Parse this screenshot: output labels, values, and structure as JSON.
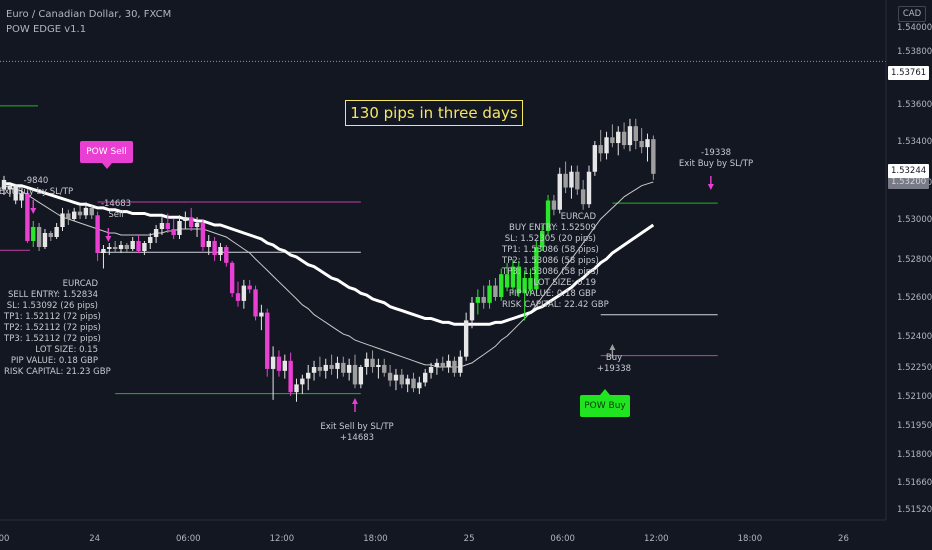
{
  "header": {
    "symbol_line": "Euro / Canadian Dollar, 30, FXCM",
    "indicator_line": "POW EDGE v1.1",
    "currency": "CAD"
  },
  "banner": "130 pips in three days",
  "tags": {
    "sell": "POW Sell",
    "buy": "POW Buy"
  },
  "sell_info": {
    "lines": [
      "EURCAD",
      "SELL ENTRY: 1.52834",
      "SL: 1.53092 (26 pips)",
      "TP1: 1.52112 (72 pips)",
      "TP2: 1.52112 (72 pips)",
      "TP3: 1.52112 (72 pips)",
      "LOT SIZE: 0.15",
      "PIP VALUE: 0.18 GBP",
      "RISK CAPITAL: 21.23 GBP"
    ]
  },
  "buy_info": {
    "lines": [
      "EURCAD",
      "BUY ENTRY: 1.52509",
      "SL: 1.52305 (20 pips)",
      "TP1: 1.53086 (58 pips)",
      "TP2: 1.53086 (58 pips)",
      "TP3: 1.53086 (58 pips)",
      "LOT SIZE: 0.19",
      "PIP VALUE: 0.18 GBP",
      "RISK CAPITAL: 22.42 GBP"
    ]
  },
  "annotations": {
    "sell_pnl": "-14683",
    "sell_label": "Sell",
    "exit_sell": "Exit Sell by SL/TP",
    "exit_sell_pnl": "+14683",
    "buy_label": "Buy",
    "buy_pnl": "+19338",
    "exit_buy_pnl": "-19338",
    "exit_buy": "Exit Buy by SL/TP",
    "left_exit_pnl": "-9840",
    "left_exit": "Exit Buy by SL/TP"
  },
  "price_labels": {
    "dotted_line": "1.53761",
    "last_price": "1.53244",
    "last_time_partial": "1.53200"
  },
  "colors": {
    "background": "#131722",
    "bull_signal": "#2ce62c",
    "bear_signal": "#ea3fd3",
    "bull_normal": "#e6e6e6",
    "bear_normal": "#9e9e9e",
    "banner": "#f5e663",
    "sl_line": "#c23fa6",
    "tp_line": "#22b322"
  },
  "chart_data": {
    "type": "candlestick",
    "symbol": "EURCAD",
    "timeframe": "30",
    "y_ticks": [
      1.54,
      1.538,
      1.536,
      1.534,
      1.532,
      1.53,
      1.528,
      1.526,
      1.524,
      1.5225,
      1.521,
      1.5195,
      1.518,
      1.5166,
      1.5152
    ],
    "y_tick_labels": [
      "1.54000",
      "1.53800",
      "1.53600",
      "1.53400",
      "1.53200",
      "1.53000",
      "1.52800",
      "1.52600",
      "1.52400",
      "1.52250",
      "1.52100",
      "1.51950",
      "1.51800",
      "1.51660",
      "1.51520"
    ],
    "x_ticks": [
      "00",
      "24",
      "06:00",
      "12:00",
      "18:00",
      "25",
      "06:00",
      "12:00",
      "18:00",
      "26"
    ],
    "x_tick_index": [
      0,
      15.5,
      31.5,
      47.5,
      63.5,
      79.5,
      95.5,
      111.5,
      127.5,
      143.5
    ],
    "candles": [
      [
        1.5321,
        1.5323,
        1.5313,
        1.5316,
        "bull"
      ],
      [
        1.5316,
        1.5319,
        1.5312,
        1.5318,
        "bull"
      ],
      [
        1.5318,
        1.5319,
        1.5308,
        1.531,
        "bull"
      ],
      [
        1.531,
        1.5316,
        1.5306,
        1.5314,
        "bull"
      ],
      [
        1.5314,
        1.5315,
        1.5288,
        1.5289,
        "bear_sig"
      ],
      [
        1.5289,
        1.5299,
        1.5286,
        1.5296,
        "bull_sig"
      ],
      [
        1.5296,
        1.5298,
        1.5284,
        1.5286,
        "bear"
      ],
      [
        1.5286,
        1.5295,
        1.5285,
        1.5293,
        "bull"
      ],
      [
        1.5293,
        1.5294,
        1.5289,
        1.5291,
        "bear"
      ],
      [
        1.5291,
        1.5298,
        1.529,
        1.5296,
        "bull"
      ],
      [
        1.5296,
        1.5306,
        1.5294,
        1.5303,
        "bull"
      ],
      [
        1.5303,
        1.5305,
        1.5297,
        1.53,
        "bear"
      ],
      [
        1.53,
        1.5306,
        1.5299,
        1.5304,
        "bull"
      ],
      [
        1.5304,
        1.5307,
        1.53,
        1.5302,
        "bear"
      ],
      [
        1.5302,
        1.5309,
        1.53,
        1.5306,
        "bull"
      ],
      [
        1.5306,
        1.5307,
        1.53,
        1.5302,
        "bear"
      ],
      [
        1.5302,
        1.5304,
        1.5279,
        1.5283,
        "bear_sig"
      ],
      [
        1.5283,
        1.5287,
        1.5275,
        1.5285,
        "bull"
      ],
      [
        1.5285,
        1.5288,
        1.5282,
        1.5286,
        "bull"
      ],
      [
        1.5286,
        1.5289,
        1.5283,
        1.5285,
        "bear"
      ],
      [
        1.5285,
        1.5289,
        1.5283,
        1.5287,
        "bull"
      ],
      [
        1.5287,
        1.5288,
        1.5283,
        1.5285,
        "bear"
      ],
      [
        1.5285,
        1.5291,
        1.5284,
        1.5289,
        "bull"
      ],
      [
        1.5289,
        1.5292,
        1.5283,
        1.5284,
        "bear_sig"
      ],
      [
        1.5284,
        1.5289,
        1.5282,
        1.5288,
        "bull"
      ],
      [
        1.5288,
        1.5293,
        1.5285,
        1.5291,
        "bull"
      ],
      [
        1.5291,
        1.5297,
        1.5288,
        1.5295,
        "bull"
      ],
      [
        1.5295,
        1.5301,
        1.5292,
        1.5298,
        "bull"
      ],
      [
        1.5298,
        1.5303,
        1.5293,
        1.5295,
        "bear_sig"
      ],
      [
        1.5295,
        1.53,
        1.529,
        1.5292,
        "bear_sig"
      ],
      [
        1.5292,
        1.5302,
        1.529,
        1.5299,
        "bull"
      ],
      [
        1.5299,
        1.5304,
        1.5295,
        1.5301,
        "bull"
      ],
      [
        1.5301,
        1.5306,
        1.5294,
        1.5296,
        "bear_sig"
      ],
      [
        1.5296,
        1.5301,
        1.5291,
        1.5298,
        "bull"
      ],
      [
        1.5298,
        1.53,
        1.5284,
        1.5286,
        "bear_sig"
      ],
      [
        1.5286,
        1.5292,
        1.5282,
        1.5289,
        "bull"
      ],
      [
        1.5289,
        1.5291,
        1.5279,
        1.5282,
        "bear_sig"
      ],
      [
        1.5282,
        1.5288,
        1.5279,
        1.5286,
        "bull"
      ],
      [
        1.5286,
        1.5287,
        1.5276,
        1.5278,
        "bear_sig"
      ],
      [
        1.5278,
        1.5279,
        1.526,
        1.5262,
        "bear_sig"
      ],
      [
        1.5262,
        1.5268,
        1.5255,
        1.5258,
        "bear_sig"
      ],
      [
        1.5258,
        1.5269,
        1.5254,
        1.5266,
        "bull"
      ],
      [
        1.5266,
        1.5269,
        1.5262,
        1.5264,
        "bear_sig"
      ],
      [
        1.5264,
        1.5266,
        1.5248,
        1.525,
        "bear_sig"
      ],
      [
        1.525,
        1.5256,
        1.5243,
        1.5252,
        "bull"
      ],
      [
        1.5252,
        1.5254,
        1.522,
        1.5224,
        "bear_sig"
      ],
      [
        1.5224,
        1.5235,
        1.5208,
        1.523,
        "bull"
      ],
      [
        1.523,
        1.5233,
        1.522,
        1.5223,
        "bear_sig"
      ],
      [
        1.5223,
        1.5231,
        1.5219,
        1.5228,
        "bull"
      ],
      [
        1.5228,
        1.5232,
        1.521,
        1.5212,
        "bear_sig"
      ],
      [
        1.5212,
        1.5219,
        1.5207,
        1.5216,
        "bull"
      ],
      [
        1.5216,
        1.5221,
        1.5211,
        1.5219,
        "bull"
      ],
      [
        1.5219,
        1.5226,
        1.5213,
        1.5222,
        "bull"
      ],
      [
        1.5222,
        1.5228,
        1.5218,
        1.5225,
        "bull"
      ],
      [
        1.5225,
        1.523,
        1.522,
        1.5223,
        "bear"
      ],
      [
        1.5223,
        1.5229,
        1.5219,
        1.5226,
        "bull"
      ],
      [
        1.5226,
        1.5231,
        1.5221,
        1.5224,
        "bear"
      ],
      [
        1.5224,
        1.523,
        1.5219,
        1.5227,
        "bull"
      ],
      [
        1.5227,
        1.523,
        1.522,
        1.5222,
        "bear"
      ],
      [
        1.5222,
        1.5229,
        1.5218,
        1.5226,
        "bull"
      ],
      [
        1.5226,
        1.5231,
        1.5214,
        1.5216,
        "bear"
      ],
      [
        1.5216,
        1.5226,
        1.5214,
        1.5225,
        "bull"
      ],
      [
        1.5225,
        1.5232,
        1.5221,
        1.5229,
        "bull"
      ],
      [
        1.5229,
        1.5233,
        1.5222,
        1.5225,
        "bear"
      ],
      [
        1.5225,
        1.5229,
        1.5219,
        1.5226,
        "bull"
      ],
      [
        1.5226,
        1.5229,
        1.522,
        1.5222,
        "bear"
      ],
      [
        1.5222,
        1.5226,
        1.5215,
        1.5218,
        "bear"
      ],
      [
        1.5218,
        1.5224,
        1.5213,
        1.5221,
        "bull"
      ],
      [
        1.5221,
        1.5224,
        1.5214,
        1.5216,
        "bear"
      ],
      [
        1.5216,
        1.5221,
        1.5212,
        1.5219,
        "bull"
      ],
      [
        1.5219,
        1.5222,
        1.5212,
        1.5214,
        "bear"
      ],
      [
        1.5214,
        1.522,
        1.5211,
        1.5217,
        "bull"
      ],
      [
        1.5217,
        1.5224,
        1.5215,
        1.5222,
        "bull"
      ],
      [
        1.5222,
        1.5227,
        1.5219,
        1.5225,
        "bull"
      ],
      [
        1.5225,
        1.5229,
        1.5221,
        1.5227,
        "bull"
      ],
      [
        1.5227,
        1.523,
        1.5223,
        1.5225,
        "bear"
      ],
      [
        1.5225,
        1.5231,
        1.5222,
        1.5228,
        "bull"
      ],
      [
        1.5228,
        1.523,
        1.522,
        1.5222,
        "bear"
      ],
      [
        1.5222,
        1.5233,
        1.522,
        1.523,
        "bull"
      ],
      [
        1.523,
        1.5252,
        1.5228,
        1.5248,
        "bull"
      ],
      [
        1.5248,
        1.526,
        1.5244,
        1.5257,
        "bull"
      ],
      [
        1.5257,
        1.5264,
        1.5251,
        1.526,
        "bull_sig"
      ],
      [
        1.526,
        1.5266,
        1.5254,
        1.5257,
        "bear"
      ],
      [
        1.5257,
        1.5269,
        1.5254,
        1.5266,
        "bull_sig"
      ],
      [
        1.5266,
        1.527,
        1.5258,
        1.526,
        "bear"
      ],
      [
        1.526,
        1.5275,
        1.5258,
        1.5272,
        "bull_sig"
      ],
      [
        1.5272,
        1.5278,
        1.5263,
        1.5265,
        "bull_sig"
      ],
      [
        1.5265,
        1.528,
        1.5261,
        1.5276,
        "bull_sig"
      ],
      [
        1.5276,
        1.5279,
        1.526,
        1.5262,
        "bull_sig"
      ],
      [
        1.5262,
        1.5274,
        1.5248,
        1.527,
        "bull_sig"
      ],
      [
        1.527,
        1.5275,
        1.5262,
        1.5264,
        "bull_sig"
      ],
      [
        1.5264,
        1.5289,
        1.5262,
        1.5286,
        "bull_sig"
      ],
      [
        1.5286,
        1.5297,
        1.5284,
        1.5294,
        "bull_sig"
      ],
      [
        1.5294,
        1.5313,
        1.5292,
        1.531,
        "bull_sig"
      ],
      [
        1.531,
        1.5313,
        1.5302,
        1.5305,
        "bear"
      ],
      [
        1.5305,
        1.5327,
        1.5303,
        1.5324,
        "bull"
      ],
      [
        1.5324,
        1.533,
        1.5314,
        1.5317,
        "bear"
      ],
      [
        1.5317,
        1.5328,
        1.5311,
        1.5325,
        "bull"
      ],
      [
        1.5325,
        1.5328,
        1.5313,
        1.5316,
        "bear"
      ],
      [
        1.5316,
        1.5321,
        1.5305,
        1.5308,
        "bear"
      ],
      [
        1.5308,
        1.5328,
        1.5306,
        1.5325,
        "bull"
      ],
      [
        1.5325,
        1.534,
        1.5323,
        1.5338,
        "bull"
      ],
      [
        1.5338,
        1.5346,
        1.533,
        1.5334,
        "bear"
      ],
      [
        1.5334,
        1.5345,
        1.5331,
        1.5342,
        "bull"
      ],
      [
        1.5342,
        1.5349,
        1.5337,
        1.5339,
        "bear"
      ],
      [
        1.5339,
        1.5348,
        1.5333,
        1.5345,
        "bull"
      ],
      [
        1.5345,
        1.535,
        1.5336,
        1.5338,
        "bear"
      ],
      [
        1.5338,
        1.5352,
        1.5335,
        1.5348,
        "bull"
      ],
      [
        1.5348,
        1.5352,
        1.5336,
        1.534,
        "bear"
      ],
      [
        1.534,
        1.5347,
        1.5334,
        1.5337,
        "bear"
      ],
      [
        1.5337,
        1.5344,
        1.533,
        1.5341,
        "bull"
      ],
      [
        1.5341,
        1.5343,
        1.5321,
        1.5324,
        "bear"
      ]
    ],
    "sma_fast": [
      1.5318,
      1.5317,
      1.5316,
      1.5315,
      1.5313,
      1.5311,
      1.5309,
      1.5307,
      1.5305,
      1.5303,
      1.5301,
      1.53,
      1.5299,
      1.5298,
      1.5297,
      1.5296,
      1.5295,
      1.5294,
      1.5293,
      1.5293,
      1.5292,
      1.5292,
      1.5292,
      1.5292,
      1.5292,
      1.5292,
      1.5293,
      1.5293,
      1.5294,
      1.5294,
      1.5295,
      1.5295,
      1.5295,
      1.5295,
      1.5295,
      1.5294,
      1.5293,
      1.5292,
      1.5291,
      1.5289,
      1.5287,
      1.5285,
      1.5283,
      1.528,
      1.5277,
      1.5274,
      1.5271,
      1.5268,
      1.5265,
      1.5262,
      1.5259,
      1.5256,
      1.5254,
      1.5251,
      1.5249,
      1.5247,
      1.5245,
      1.5243,
      1.5241,
      1.524,
      1.5238,
      1.5237,
      1.5236,
      1.5235,
      1.5234,
      1.5233,
      1.5232,
      1.5231,
      1.523,
      1.5229,
      1.5228,
      1.5227,
      1.5226,
      1.5226,
      1.5225,
      1.5225,
      1.5225,
      1.5225,
      1.5225,
      1.5226,
      1.5227,
      1.5229,
      1.5231,
      1.5233,
      1.5235,
      1.5238,
      1.524,
      1.5243,
      1.5246,
      1.5249,
      1.5252,
      1.5256,
      1.526,
      1.5264,
      1.5268,
      1.5272,
      1.5276,
      1.528,
      1.5284,
      1.5288,
      1.5292,
      1.5296,
      1.53,
      1.5303,
      1.5306,
      1.5309,
      1.5312,
      1.5314,
      1.5316,
      1.5318,
      1.5319,
      1.532
    ],
    "sma_slow": [
      1.5319,
      1.5319,
      1.5318,
      1.5318,
      1.5317,
      1.5316,
      1.5315,
      1.5314,
      1.5313,
      1.5312,
      1.5311,
      1.531,
      1.5309,
      1.5308,
      1.5308,
      1.5307,
      1.5306,
      1.5306,
      1.5305,
      1.5305,
      1.5304,
      1.5304,
      1.5303,
      1.5303,
      1.5303,
      1.5302,
      1.5302,
      1.5302,
      1.5301,
      1.5301,
      1.5301,
      1.53,
      1.53,
      1.5299,
      1.5299,
      1.5298,
      1.5297,
      1.5297,
      1.5296,
      1.5295,
      1.5294,
      1.5293,
      1.5292,
      1.5291,
      1.529,
      1.5288,
      1.5287,
      1.5285,
      1.5284,
      1.5282,
      1.5281,
      1.5279,
      1.5277,
      1.5276,
      1.5274,
      1.5272,
      1.527,
      1.5269,
      1.5267,
      1.5265,
      1.5264,
      1.5262,
      1.5261,
      1.5259,
      1.5258,
      1.5257,
      1.5255,
      1.5254,
      1.5253,
      1.5252,
      1.5251,
      1.525,
      1.5249,
      1.5249,
      1.5248,
      1.5247,
      1.5247,
      1.5246,
      1.5246,
      1.5246,
      1.5246,
      1.5246,
      1.5246,
      1.5246,
      1.5247,
      1.5247,
      1.5248,
      1.5249,
      1.525,
      1.5251,
      1.5252,
      1.5254,
      1.5255,
      1.5257,
      1.5259,
      1.5261,
      1.5263,
      1.5265,
      1.5268,
      1.527,
      1.5273,
      1.5275,
      1.5278,
      1.528,
      1.5283,
      1.5285,
      1.5287,
      1.5289,
      1.5291,
      1.5293,
      1.5295,
      1.5297
    ],
    "levels": [
      {
        "kind": "sell_sl",
        "price": 1.53092
      },
      {
        "kind": "sell_entry",
        "price": 1.52834
      },
      {
        "kind": "sell_tp",
        "price": 1.52112
      },
      {
        "kind": "buy_tp",
        "price": 1.53086
      },
      {
        "kind": "buy_entry",
        "price": 1.52509
      },
      {
        "kind": "buy_sl",
        "price": 1.52305
      },
      {
        "kind": "left_tp",
        "price": 1.5359
      }
    ],
    "dotted_price": 1.53761,
    "last_price": 1.53244
  }
}
